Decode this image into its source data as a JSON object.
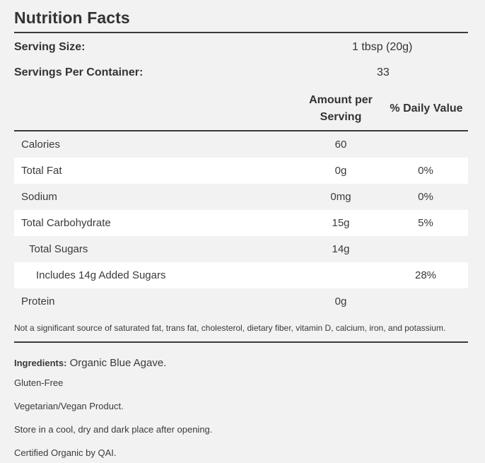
{
  "title": "Nutrition Facts",
  "serving": {
    "size_label": "Serving Size:",
    "size_value": "1 tbsp (20g)",
    "per_container_label": "Servings Per Container:",
    "per_container_value": "33"
  },
  "columns": {
    "amount_line1": "Amount per",
    "amount_line2": "Serving",
    "daily_value": "% Daily Value"
  },
  "rows": [
    {
      "name": "Calories",
      "amount": "60",
      "dv": ""
    },
    {
      "name": "Total Fat",
      "amount": "0g",
      "dv": "0%"
    },
    {
      "name": "Sodium",
      "amount": "0mg",
      "dv": "0%"
    },
    {
      "name": "Total Carbohydrate",
      "amount": "15g",
      "dv": "5%"
    },
    {
      "name": "Total Sugars",
      "amount": "14g",
      "dv": ""
    },
    {
      "name": "Includes 14g Added Sugars",
      "amount": "",
      "dv": "28%"
    },
    {
      "name": "Protein",
      "amount": "0g",
      "dv": ""
    }
  ],
  "footnote": "Not a significant source of saturated fat, trans fat, cholesterol, dietary fiber, vitamin D, calcium, iron, and potassium.",
  "ingredients": {
    "label": "Ingredients:",
    "value": "Organic Blue Agave."
  },
  "notes": [
    "Gluten-Free",
    "Vegetarian/Vegan Product.",
    "Store in a cool, dry and dark place after opening.",
    "Certified Organic by QAI."
  ]
}
